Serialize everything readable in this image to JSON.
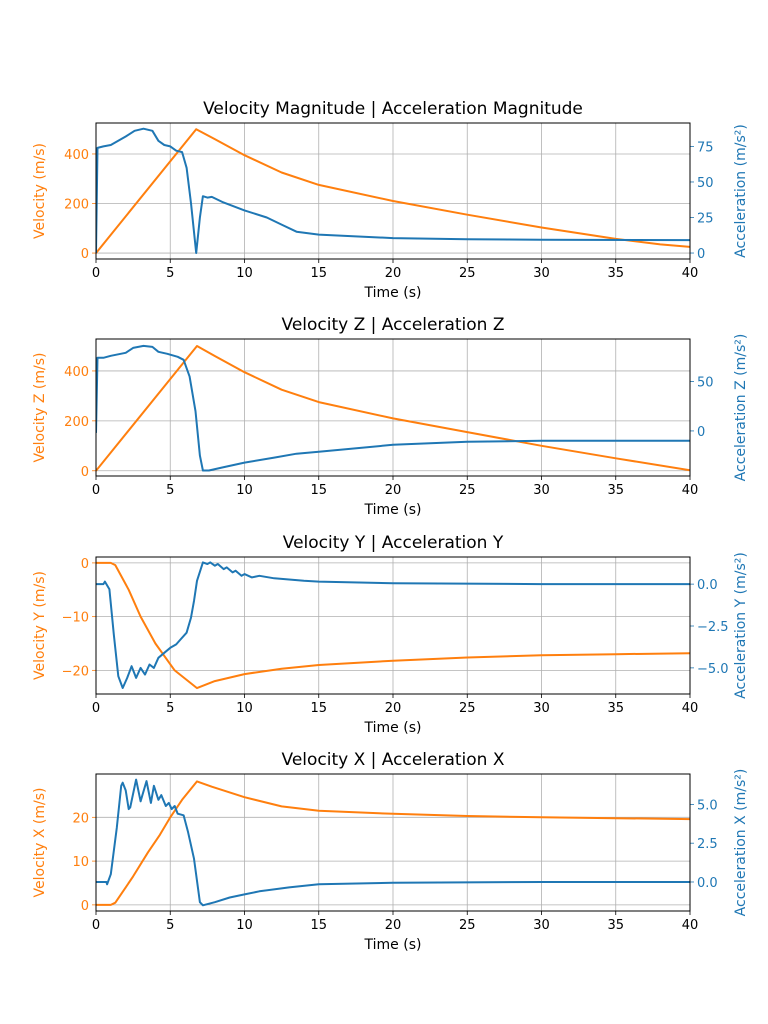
{
  "colors": {
    "velocity": "#ff7f0e",
    "acceleration": "#1f77b4",
    "grid": "#b0b0b0",
    "axis": "#000000"
  },
  "chart_data": [
    {
      "type": "line",
      "title": "Velocity Magnitude | Acceleration Magnitude",
      "xlabel": "Time (s)",
      "xlim": [
        0,
        40
      ],
      "xticks": [
        "0",
        "5",
        "10",
        "15",
        "20",
        "25",
        "30",
        "35",
        "40"
      ],
      "grid": true,
      "left": {
        "ylabel": "Velocity (m/s)",
        "ylim": [
          -24,
          525
        ],
        "ticks": [
          0,
          200,
          400
        ],
        "tick_labels": [
          "0",
          "200",
          "400"
        ],
        "points": [
          [
            0,
            0
          ],
          [
            6.75,
            500
          ],
          [
            8,
            460
          ],
          [
            10,
            395
          ],
          [
            12.5,
            325
          ],
          [
            15,
            275
          ],
          [
            20,
            210
          ],
          [
            25,
            155
          ],
          [
            30,
            103
          ],
          [
            35,
            57
          ],
          [
            38,
            35
          ],
          [
            40,
            25
          ]
        ]
      },
      "right": {
        "ylabel": "Acceleration (m/s²)",
        "ylim": [
          -4.2,
          91.5
        ],
        "ticks": [
          0,
          25,
          50,
          75
        ],
        "tick_labels": [
          "0",
          "25",
          "50",
          "75"
        ],
        "points": [
          [
            0,
            0
          ],
          [
            0.1,
            74
          ],
          [
            0.5,
            75
          ],
          [
            1,
            76
          ],
          [
            2,
            82
          ],
          [
            2.6,
            86
          ],
          [
            3.2,
            87.5
          ],
          [
            3.8,
            86
          ],
          [
            4.2,
            79
          ],
          [
            4.6,
            76
          ],
          [
            5,
            75
          ],
          [
            5.4,
            72
          ],
          [
            5.8,
            71
          ],
          [
            6.1,
            60
          ],
          [
            6.4,
            35
          ],
          [
            6.75,
            0
          ],
          [
            7.0,
            25
          ],
          [
            7.2,
            40
          ],
          [
            7.5,
            39
          ],
          [
            7.8,
            39.5
          ],
          [
            8.5,
            36
          ],
          [
            10,
            30
          ],
          [
            11.5,
            25
          ],
          [
            12.5,
            20
          ],
          [
            13.5,
            15
          ],
          [
            15,
            13
          ],
          [
            20,
            10.5
          ],
          [
            25,
            9.7
          ],
          [
            30,
            9.3
          ],
          [
            40,
            9.1
          ]
        ]
      }
    },
    {
      "type": "line",
      "title": "Velocity Z | Acceleration Z",
      "xlabel": "Time (s)",
      "xlim": [
        0,
        40
      ],
      "xticks": [
        "0",
        "5",
        "10",
        "15",
        "20",
        "25",
        "30",
        "35",
        "40"
      ],
      "grid": true,
      "left": {
        "ylabel": "Velocity Z (m/s)",
        "ylim": [
          -21,
          528
        ],
        "ticks": [
          0,
          200,
          400
        ],
        "tick_labels": [
          "0",
          "200",
          "400"
        ],
        "points": [
          [
            0,
            0
          ],
          [
            6.8,
            500
          ],
          [
            8,
            460
          ],
          [
            10,
            395
          ],
          [
            12.5,
            325
          ],
          [
            15,
            275
          ],
          [
            20,
            210
          ],
          [
            25,
            155
          ],
          [
            30,
            100
          ],
          [
            35,
            50
          ],
          [
            40,
            2
          ]
        ]
      },
      "right": {
        "ylabel": "Acceleration Z (m/s²)",
        "ylim": [
          -45.6,
          93
        ],
        "ticks": [
          0,
          50
        ],
        "tick_labels": [
          "0",
          "50"
        ],
        "points": [
          [
            0,
            -2
          ],
          [
            0.1,
            74
          ],
          [
            0.5,
            74
          ],
          [
            1,
            76
          ],
          [
            2,
            79
          ],
          [
            2.5,
            84
          ],
          [
            3.2,
            86
          ],
          [
            3.8,
            85
          ],
          [
            4.2,
            80
          ],
          [
            4.8,
            78
          ],
          [
            5.5,
            75
          ],
          [
            5.9,
            72
          ],
          [
            6.3,
            55
          ],
          [
            6.7,
            20
          ],
          [
            7.0,
            -25
          ],
          [
            7.2,
            -40
          ],
          [
            7.6,
            -40
          ],
          [
            8.5,
            -37
          ],
          [
            10,
            -32
          ],
          [
            12,
            -27
          ],
          [
            13.5,
            -23
          ],
          [
            15,
            -21
          ],
          [
            20,
            -14
          ],
          [
            25,
            -11
          ],
          [
            30,
            -10
          ],
          [
            40,
            -10
          ]
        ]
      }
    },
    {
      "type": "line",
      "title": "Velocity Y | Acceleration Y",
      "xlabel": "Time (s)",
      "xlim": [
        0,
        40
      ],
      "xticks": [
        "0",
        "5",
        "10",
        "15",
        "20",
        "25",
        "30",
        "35",
        "40"
      ],
      "grid": true,
      "left": {
        "ylabel": "Velocity Y (m/s)",
        "ylim": [
          -24.4,
          1.1
        ],
        "ticks": [
          0,
          -10,
          -20
        ],
        "tick_labels": [
          "0",
          "−10",
          "−20"
        ],
        "points": [
          [
            0,
            0
          ],
          [
            1.0,
            0
          ],
          [
            1.3,
            -0.4
          ],
          [
            2.2,
            -5
          ],
          [
            3.0,
            -10
          ],
          [
            4.0,
            -15
          ],
          [
            5.3,
            -20
          ],
          [
            6.8,
            -23.3
          ],
          [
            8,
            -22
          ],
          [
            10,
            -20.7
          ],
          [
            12.5,
            -19.7
          ],
          [
            15,
            -19
          ],
          [
            20,
            -18.2
          ],
          [
            25,
            -17.6
          ],
          [
            30,
            -17.2
          ],
          [
            35,
            -17
          ],
          [
            40,
            -16.8
          ]
        ]
      },
      "right": {
        "ylabel": "Acceleration Y (m/s²)",
        "ylim": [
          -6.56,
          1.62
        ],
        "ticks": [
          0,
          -2.5,
          -5
        ],
        "tick_labels": [
          "0.0",
          "−2.5",
          "−5.0"
        ],
        "points": [
          [
            0,
            0
          ],
          [
            0.5,
            0
          ],
          [
            0.6,
            0.15
          ],
          [
            0.9,
            -0.3
          ],
          [
            1.2,
            -3
          ],
          [
            1.5,
            -5.5
          ],
          [
            1.8,
            -6.2
          ],
          [
            2.1,
            -5.6
          ],
          [
            2.4,
            -4.9
          ],
          [
            2.7,
            -5.6
          ],
          [
            3.0,
            -5.0
          ],
          [
            3.3,
            -5.4
          ],
          [
            3.6,
            -4.8
          ],
          [
            3.9,
            -5.0
          ],
          [
            4.2,
            -4.4
          ],
          [
            4.6,
            -4.1
          ],
          [
            5,
            -3.8
          ],
          [
            5.4,
            -3.6
          ],
          [
            5.7,
            -3.3
          ],
          [
            6.1,
            -2.9
          ],
          [
            6.4,
            -2.0
          ],
          [
            6.6,
            -1.0
          ],
          [
            6.8,
            0.2
          ],
          [
            7.2,
            1.3
          ],
          [
            7.5,
            1.2
          ],
          [
            7.7,
            1.3
          ],
          [
            8.0,
            1.1
          ],
          [
            8.2,
            1.2
          ],
          [
            8.6,
            0.9
          ],
          [
            8.8,
            1.0
          ],
          [
            9.2,
            0.7
          ],
          [
            9.4,
            0.8
          ],
          [
            9.8,
            0.5
          ],
          [
            10,
            0.6
          ],
          [
            10.5,
            0.4
          ],
          [
            11,
            0.5
          ],
          [
            12,
            0.35
          ],
          [
            14,
            0.2
          ],
          [
            15,
            0.15
          ],
          [
            20,
            0.05
          ],
          [
            30,
            0
          ],
          [
            40,
            0
          ]
        ]
      }
    },
    {
      "type": "line",
      "title": "Velocity X | Acceleration X",
      "xlabel": "Time (s)",
      "xlim": [
        0,
        40
      ],
      "xticks": [
        "0",
        "5",
        "10",
        "15",
        "20",
        "25",
        "30",
        "35",
        "40"
      ],
      "grid": true,
      "left": {
        "ylabel": "Velocity X (m/s)",
        "ylim": [
          -1.4,
          29.9
        ],
        "ticks": [
          0,
          10,
          20
        ],
        "tick_labels": [
          "0",
          "10",
          "20"
        ],
        "points": [
          [
            0,
            0
          ],
          [
            1.0,
            0
          ],
          [
            1.3,
            0.5
          ],
          [
            2,
            4
          ],
          [
            2.5,
            6.5
          ],
          [
            3.5,
            12
          ],
          [
            4.3,
            16
          ],
          [
            5,
            20
          ],
          [
            5.8,
            24
          ],
          [
            6.8,
            28.2
          ],
          [
            7.8,
            27
          ],
          [
            10,
            24.6
          ],
          [
            12.5,
            22.5
          ],
          [
            15,
            21.5
          ],
          [
            20,
            20.8
          ],
          [
            25,
            20.3
          ],
          [
            30,
            20
          ],
          [
            35,
            19.8
          ],
          [
            40,
            19.6
          ]
        ]
      },
      "right": {
        "ylabel": "Acceleration X (m/s²)",
        "ylim": [
          -1.87,
          6.96
        ],
        "ticks": [
          0,
          2.5,
          5
        ],
        "tick_labels": [
          "0.0",
          "2.5",
          "5.0"
        ],
        "points": [
          [
            0,
            0
          ],
          [
            0.7,
            0
          ],
          [
            0.75,
            -0.15
          ],
          [
            1.0,
            0.5
          ],
          [
            1.4,
            3.5
          ],
          [
            1.7,
            6.2
          ],
          [
            1.8,
            6.4
          ],
          [
            2.0,
            5.9
          ],
          [
            2.2,
            4.7
          ],
          [
            2.3,
            4.8
          ],
          [
            2.7,
            6.6
          ],
          [
            3.0,
            5.2
          ],
          [
            3.4,
            6.5
          ],
          [
            3.7,
            5.1
          ],
          [
            3.9,
            6.2
          ],
          [
            4.2,
            5.3
          ],
          [
            4.4,
            5.6
          ],
          [
            4.7,
            4.9
          ],
          [
            4.9,
            5.1
          ],
          [
            5.1,
            4.7
          ],
          [
            5.3,
            4.9
          ],
          [
            5.5,
            4.4
          ],
          [
            5.9,
            4.3
          ],
          [
            6.2,
            3.2
          ],
          [
            6.6,
            1.5
          ],
          [
            7.0,
            -1.3
          ],
          [
            7.2,
            -1.5
          ],
          [
            8,
            -1.3
          ],
          [
            9,
            -1.0
          ],
          [
            10,
            -0.8
          ],
          [
            11,
            -0.6
          ],
          [
            13,
            -0.35
          ],
          [
            15,
            -0.15
          ],
          [
            20,
            -0.05
          ],
          [
            30,
            0
          ],
          [
            40,
            0
          ]
        ]
      }
    }
  ]
}
